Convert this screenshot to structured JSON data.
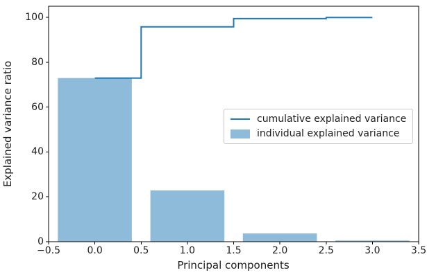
{
  "figure": {
    "background": "#ffffff"
  },
  "chart_data": {
    "type": "bar",
    "title": "",
    "xlabel": "Principal components",
    "ylabel": "Explained variance ratio",
    "x": [
      0,
      1,
      2,
      3
    ],
    "series": [
      {
        "name": "cumulative explained variance",
        "type": "step",
        "where": "mid",
        "values": [
          72.96,
          95.81,
          99.48,
          100.0
        ]
      },
      {
        "name": "individual explained variance",
        "type": "bar",
        "values": [
          72.96,
          22.85,
          3.67,
          0.52
        ]
      }
    ],
    "bar_width": 0.8,
    "xlim": [
      -0.5,
      3.5
    ],
    "ylim": [
      0,
      105
    ],
    "xticks": {
      "values": [
        -0.5,
        0.0,
        0.5,
        1.0,
        1.5,
        2.0,
        2.5,
        3.0,
        3.5
      ],
      "labels": [
        "−0.5",
        "0.0",
        "0.5",
        "1.0",
        "1.5",
        "2.0",
        "2.5",
        "3.0",
        "3.5"
      ]
    },
    "yticks": {
      "values": [
        0,
        20,
        40,
        60,
        80,
        100
      ],
      "labels": [
        "0",
        "20",
        "40",
        "60",
        "80",
        "100"
      ]
    },
    "grid": false,
    "legend": {
      "position": "center right",
      "entries": [
        {
          "label": "cumulative explained variance",
          "swatch": "line"
        },
        {
          "label": "individual explained variance",
          "swatch": "patch"
        }
      ]
    },
    "colors": {
      "line": "#1f77b4",
      "bar": "#8fbbda",
      "spine": "#000000",
      "text": "#1c1c1c",
      "legend_border": "#c9c9c9"
    }
  }
}
